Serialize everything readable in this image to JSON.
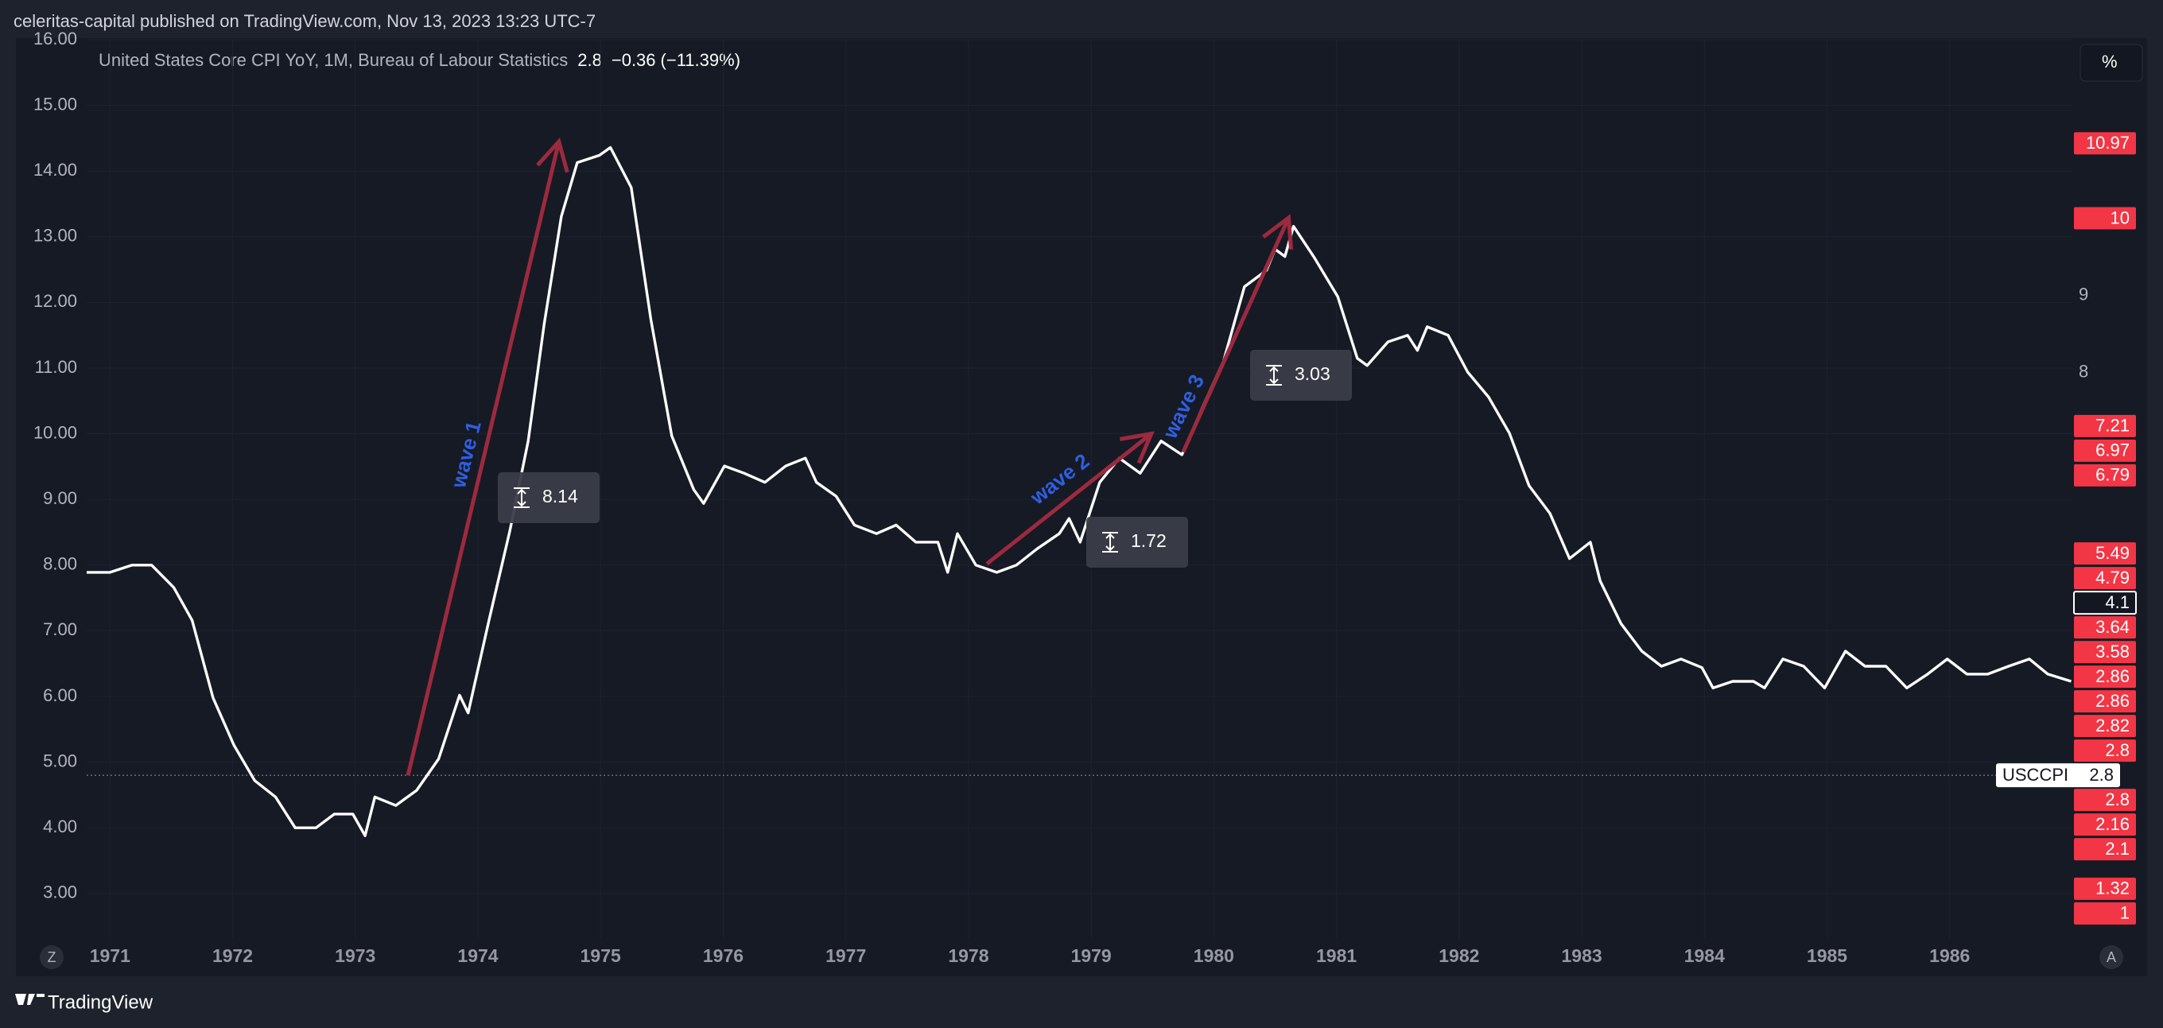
{
  "top_note": "celeritas-capital published on TradingView.com, Nov 13, 2023 13:23 UTC-7",
  "footer": "TradingView",
  "controls": {
    "percent": "%",
    "left": "Z",
    "right": "A"
  },
  "chart_data": {
    "type": "line",
    "title": "United States Core CPI YoY, 1M, Bureau of Labour Statistics",
    "last_value": 2.8,
    "change": "−0.36",
    "change_percent": "(−11.39%)",
    "symbol": "USCCPI",
    "price_line": 4.8,
    "grid": true,
    "xlim": [
      1970.81,
      1987.0
    ],
    "xticks": [
      1971,
      1972,
      1973,
      1974,
      1975,
      1976,
      1977,
      1978,
      1979,
      1980,
      1981,
      1982,
      1983,
      1984,
      1985,
      1986
    ],
    "ylim": [
      2.32,
      16.0
    ],
    "yticks": [
      {
        "value": 3,
        "label": "3.00"
      },
      {
        "value": 4,
        "label": "4.00"
      },
      {
        "value": 5,
        "label": "5.00"
      },
      {
        "value": 6,
        "label": "6.00"
      },
      {
        "value": 7,
        "label": "7.00"
      },
      {
        "value": 8,
        "label": "8.00"
      },
      {
        "value": 9,
        "label": "9.00"
      },
      {
        "value": 10,
        "label": "10.00"
      },
      {
        "value": 11,
        "label": "11.00"
      },
      {
        "value": 12,
        "label": "12.00"
      },
      {
        "value": 13,
        "label": "13.00"
      },
      {
        "value": 14,
        "label": "14.00"
      },
      {
        "value": 15,
        "label": "15.00"
      },
      {
        "value": 16,
        "label": "16.00"
      }
    ],
    "y2lim": [
      0.68,
      12.31
    ],
    "y2ticks": [
      8,
      9,
      10
    ],
    "series": [
      {
        "name": "USCCPI",
        "color": "#ffffff",
        "x": [
          1970.81,
          1971.0,
          1971.18,
          1971.34,
          1971.52,
          1971.67,
          1971.84,
          1972.01,
          1972.18,
          1972.35,
          1972.51,
          1972.68,
          1972.83,
          1972.98,
          1973.08,
          1973.16,
          1973.33,
          1973.5,
          1973.68,
          1973.85,
          1973.92,
          1974.09,
          1974.26,
          1974.41,
          1974.54,
          1974.68,
          1974.81,
          1974.99,
          1975.08,
          1975.25,
          1975.41,
          1975.58,
          1975.76,
          1975.84,
          1976.01,
          1976.17,
          1976.34,
          1976.51,
          1976.67,
          1976.76,
          1976.92,
          1977.07,
          1977.25,
          1977.41,
          1977.57,
          1977.75,
          1977.83,
          1977.91,
          1978.06,
          1978.23,
          1978.39,
          1978.56,
          1978.74,
          1978.82,
          1978.91,
          1979.07,
          1979.23,
          1979.4,
          1979.57,
          1979.74,
          1979.91,
          1980.08,
          1980.25,
          1980.43,
          1980.5,
          1980.58,
          1980.65,
          1980.82,
          1981.01,
          1981.17,
          1981.25,
          1981.42,
          1981.58,
          1981.66,
          1981.74,
          1981.91,
          1982.07,
          1982.24,
          1982.41,
          1982.57,
          1982.74,
          1982.9,
          1983.07,
          1983.15,
          1983.32,
          1983.49,
          1983.65,
          1983.81,
          1983.98,
          1984.07,
          1984.23,
          1984.4,
          1984.49,
          1984.64,
          1984.81,
          1984.98,
          1985.15,
          1985.31,
          1985.48,
          1985.65,
          1985.82,
          1985.98,
          1986.14,
          1986.31,
          1986.48,
          1986.65,
          1986.8,
          1986.99
        ],
        "values": [
          7.89,
          7.89,
          8.0,
          8.0,
          7.66,
          7.16,
          5.98,
          5.26,
          4.72,
          4.47,
          4.0,
          4.0,
          4.21,
          4.21,
          3.88,
          4.47,
          4.34,
          4.57,
          5.05,
          6.02,
          5.75,
          7.16,
          8.52,
          9.89,
          11.67,
          13.31,
          14.13,
          14.24,
          14.36,
          13.75,
          11.74,
          9.97,
          9.15,
          8.94,
          9.51,
          9.4,
          9.26,
          9.51,
          9.63,
          9.26,
          9.05,
          8.61,
          8.48,
          8.61,
          8.35,
          8.35,
          7.89,
          8.48,
          8.0,
          7.89,
          8.0,
          8.25,
          8.48,
          8.71,
          8.35,
          9.26,
          9.63,
          9.4,
          9.89,
          9.68,
          10.41,
          11.11,
          12.24,
          12.49,
          12.81,
          12.7,
          13.16,
          12.68,
          12.09,
          11.15,
          11.04,
          11.4,
          11.5,
          11.27,
          11.63,
          11.5,
          10.94,
          10.56,
          10.01,
          9.21,
          8.79,
          8.1,
          8.35,
          7.76,
          7.11,
          6.69,
          6.46,
          6.57,
          6.44,
          6.13,
          6.23,
          6.23,
          6.13,
          6.57,
          6.46,
          6.13,
          6.69,
          6.46,
          6.46,
          6.13,
          6.34,
          6.57,
          6.34,
          6.34,
          6.46,
          6.57,
          6.34,
          6.23
        ]
      }
    ],
    "arrows": [
      {
        "label": "wave 1",
        "measure": 8.14,
        "from": [
          1973.43,
          4.8
        ],
        "to": [
          1974.66,
          14.45
        ]
      },
      {
        "label": "wave 2",
        "measure": 1.72,
        "from": [
          1978.15,
          8.02
        ],
        "to": [
          1979.49,
          10.0
        ]
      },
      {
        "label": "wave 3",
        "measure": 3.03,
        "from": [
          1979.75,
          9.72
        ],
        "to": [
          1980.61,
          13.29
        ]
      }
    ],
    "arrow_color": "#9c2a3e",
    "label_color": "#2f5fe0",
    "tags": [
      {
        "value": 10.97,
        "color": "#f23645"
      },
      {
        "value": 10,
        "color": "#f23645"
      },
      {
        "value": 7.21,
        "color": "#f23645"
      },
      {
        "value": 6.97,
        "color": "#f23645"
      },
      {
        "value": 6.79,
        "color": "#f23645"
      },
      {
        "value": 5.49,
        "color": "#f23645"
      },
      {
        "value": 4.79,
        "color": "#f23645"
      },
      {
        "value": 4.1,
        "color": "#131722"
      },
      {
        "value": 3.64,
        "color": "#f23645"
      },
      {
        "value": 3.58,
        "color": "#f23645"
      },
      {
        "value": 2.86,
        "color": "#f23645"
      },
      {
        "value": 2.86,
        "color": "#f23645"
      },
      {
        "value": 2.82,
        "color": "#f23645"
      },
      {
        "value": 2.8,
        "color": "#f23645"
      },
      {
        "value": 2.8,
        "color": "#f23645"
      },
      {
        "value": 2.16,
        "color": "#f23645"
      },
      {
        "value": 2.1,
        "color": "#f23645"
      },
      {
        "value": 1.32,
        "color": "#f23645"
      },
      {
        "value": 1,
        "color": "#f23645"
      }
    ]
  }
}
